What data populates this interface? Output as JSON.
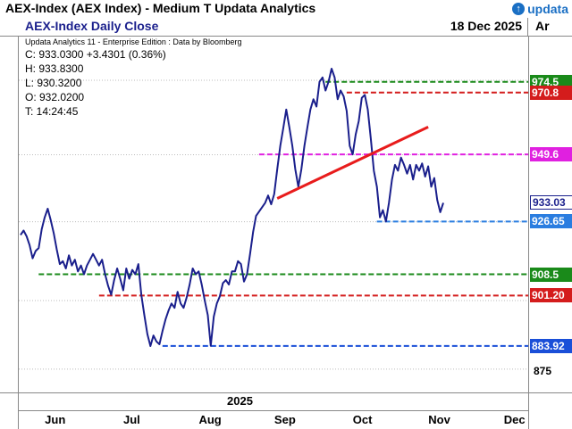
{
  "window": {
    "title": "AEX-Index (AEX Index) - Medium T  Updata Analytics",
    "logo_text": "updata"
  },
  "header": {
    "chart_name": "AEX-Index Daily Close",
    "date": "18 Dec 2025",
    "right_label": "Ar"
  },
  "info": {
    "source": "Updata Analytics 11 - Enterprise Edition : Data by Bloomberg",
    "close": "C: 933.0300  +3.4301 (0.36%)",
    "high": "H: 933.8300",
    "low": "L: 930.3200",
    "open": "O: 932.0200",
    "time": "T: 14:24:45"
  },
  "colors": {
    "price_line": "#1a1f8c",
    "trend_line": "#e81c1c",
    "green": "#1a8a1a",
    "red": "#d41c1c",
    "magenta": "#e020e0",
    "blue": "#1a4fd8",
    "dotted_blue": "#2a7de0"
  },
  "chart_data": {
    "type": "line",
    "title": "AEX-Index Daily Close",
    "x_months": [
      "Jun",
      "Jul",
      "Aug",
      "Sep",
      "Oct",
      "Nov",
      "Dec"
    ],
    "year": "2025",
    "ylim": [
      868,
      990
    ],
    "y_tick": "875",
    "series": [
      {
        "values": [
          [
            0,
            922
          ],
          [
            1,
            923.5
          ],
          [
            2,
            921.5
          ],
          [
            3,
            918.5
          ],
          [
            4,
            914
          ],
          [
            5,
            916.5
          ],
          [
            6,
            917.5
          ],
          [
            7,
            924
          ],
          [
            8,
            928
          ],
          [
            9,
            931
          ],
          [
            10,
            927
          ],
          [
            11,
            922.5
          ],
          [
            12,
            917
          ],
          [
            13,
            912
          ],
          [
            14,
            913
          ],
          [
            15,
            910.5
          ],
          [
            16,
            915
          ],
          [
            17,
            911.5
          ],
          [
            18,
            913.5
          ],
          [
            19,
            909.5
          ],
          [
            20,
            911.5
          ],
          [
            21,
            908.5
          ],
          [
            22,
            911.5
          ],
          [
            23,
            913.5
          ],
          [
            24,
            915.5
          ],
          [
            25,
            913.5
          ],
          [
            26,
            911.5
          ],
          [
            27,
            913.5
          ],
          [
            28,
            908.5
          ],
          [
            29,
            904.5
          ],
          [
            30,
            901.5
          ],
          [
            31,
            906.5
          ],
          [
            32,
            910.5
          ],
          [
            33,
            907
          ],
          [
            34,
            903
          ],
          [
            35,
            910.5
          ],
          [
            36,
            907
          ],
          [
            37,
            910
          ],
          [
            38,
            908.5
          ],
          [
            39,
            912
          ],
          [
            40,
            901.5
          ],
          [
            41,
            894.5
          ],
          [
            42,
            888
          ],
          [
            43,
            883.9
          ],
          [
            44,
            887.5
          ],
          [
            45,
            885.5
          ],
          [
            46,
            884.5
          ],
          [
            47,
            889
          ],
          [
            48,
            893
          ],
          [
            49,
            896
          ],
          [
            50,
            898.5
          ],
          [
            51,
            897
          ],
          [
            52,
            902.5
          ],
          [
            53,
            898.5
          ],
          [
            54,
            897
          ],
          [
            55,
            900.5
          ],
          [
            56,
            905
          ],
          [
            57,
            910.5
          ],
          [
            58,
            908.5
          ],
          [
            59,
            909.5
          ],
          [
            60,
            905
          ],
          [
            61,
            899.5
          ],
          [
            62,
            894.5
          ],
          [
            63,
            884
          ],
          [
            64,
            894
          ],
          [
            65,
            898.5
          ],
          [
            66,
            901
          ],
          [
            67,
            905.5
          ],
          [
            68,
            906.5
          ],
          [
            69,
            905
          ],
          [
            70,
            909.5
          ],
          [
            71,
            909.5
          ],
          [
            72,
            913
          ],
          [
            73,
            912
          ],
          [
            74,
            906
          ],
          [
            75,
            908.5
          ],
          [
            76,
            915.5
          ],
          [
            77,
            923
          ],
          [
            78,
            928.5
          ],
          [
            79,
            930
          ],
          [
            80,
            931.5
          ],
          [
            81,
            933
          ],
          [
            82,
            935.5
          ],
          [
            83,
            932.5
          ],
          [
            84,
            936
          ],
          [
            85,
            944.5
          ],
          [
            86,
            952.5
          ],
          [
            87,
            958.5
          ],
          [
            88,
            965
          ],
          [
            89,
            959
          ],
          [
            90,
            952.5
          ],
          [
            91,
            944.5
          ],
          [
            92,
            938.5
          ],
          [
            93,
            944.5
          ],
          [
            94,
            952.5
          ],
          [
            95,
            959
          ],
          [
            96,
            965
          ],
          [
            97,
            968.5
          ],
          [
            98,
            966
          ],
          [
            99,
            974.5
          ],
          [
            100,
            976
          ],
          [
            101,
            971.5
          ],
          [
            102,
            974.5
          ],
          [
            103,
            979
          ],
          [
            104,
            976
          ],
          [
            105,
            968.5
          ],
          [
            106,
            971.5
          ],
          [
            107,
            969.5
          ],
          [
            108,
            964.5
          ],
          [
            109,
            952.5
          ],
          [
            110,
            949.6
          ],
          [
            111,
            956.5
          ],
          [
            112,
            961
          ],
          [
            113,
            969
          ],
          [
            114,
            970
          ],
          [
            115,
            965
          ],
          [
            116,
            955
          ],
          [
            117,
            944
          ],
          [
            118,
            938.5
          ],
          [
            119,
            928
          ],
          [
            120,
            930.5
          ],
          [
            121,
            926.6
          ],
          [
            122,
            933
          ],
          [
            123,
            941
          ],
          [
            124,
            946
          ],
          [
            125,
            944
          ],
          [
            126,
            948.5
          ],
          [
            127,
            946
          ],
          [
            128,
            943
          ],
          [
            129,
            946
          ],
          [
            130,
            941
          ],
          [
            131,
            946
          ],
          [
            132,
            944
          ],
          [
            133,
            946.5
          ],
          [
            134,
            942
          ],
          [
            135,
            945.5
          ],
          [
            136,
            938.5
          ],
          [
            137,
            941.5
          ],
          [
            138,
            934
          ],
          [
            139,
            929.8
          ],
          [
            140,
            933
          ]
        ]
      }
    ],
    "trendline": {
      "from": [
        85,
        934.5
      ],
      "to": [
        135,
        959
      ]
    },
    "levels": [
      {
        "value": 974.5,
        "label": "974.5",
        "color": "#1a8a1a",
        "x_start": 101
      },
      {
        "value": 970.8,
        "label": "970.8",
        "color": "#d41c1c",
        "x_start": 108
      },
      {
        "value": 949.6,
        "label": "949.6",
        "color": "#e020e0",
        "x_start": 79
      },
      {
        "value": 933.03,
        "label": "933.03",
        "color": "#1a1f8c",
        "x_start": null
      },
      {
        "value": 926.6,
        "label": "926.65",
        "color": "#2a7de0",
        "x_start": 118
      },
      {
        "value": 908.5,
        "label": "908.5",
        "color": "#1a8a1a",
        "x_start": 6
      },
      {
        "value": 901.2,
        "label": "901.20",
        "color": "#d41c1c",
        "x_start": 26
      },
      {
        "value": 883.92,
        "label": "883.92",
        "color": "#1a4fd8",
        "x_start": 47
      }
    ],
    "grid": true,
    "gridlines": [
      876,
      899.5,
      926.5,
      949.5,
      975
    ]
  }
}
